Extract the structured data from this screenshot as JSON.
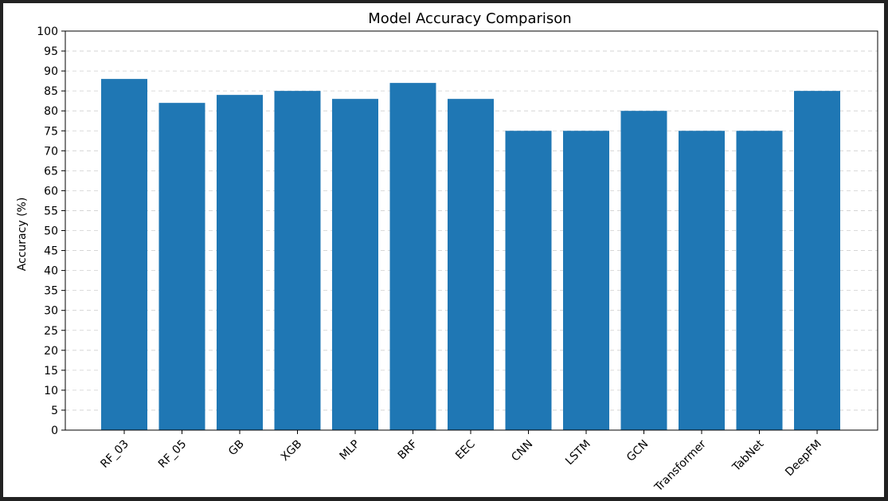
{
  "chart_data": {
    "type": "bar",
    "title": "Model Accuracy Comparison",
    "xlabel": "",
    "ylabel": "Accuracy (%)",
    "ylim": [
      0,
      100
    ],
    "yticks": [
      0,
      5,
      10,
      15,
      20,
      25,
      30,
      35,
      40,
      45,
      50,
      55,
      60,
      65,
      70,
      75,
      80,
      85,
      90,
      95,
      100
    ],
    "grid": "y-dashed",
    "bar_color": "#1f77b4",
    "categories": [
      "RF_03",
      "RF_05",
      "GB",
      "XGB",
      "MLP",
      "BRF",
      "EEC",
      "CNN",
      "LSTM",
      "GCN",
      "Transformer",
      "TabNet",
      "DeepFM"
    ],
    "values": [
      88,
      82,
      84,
      85,
      83,
      87,
      83,
      75,
      75,
      80,
      75,
      75,
      85
    ],
    "xtick_rotation": -45
  }
}
